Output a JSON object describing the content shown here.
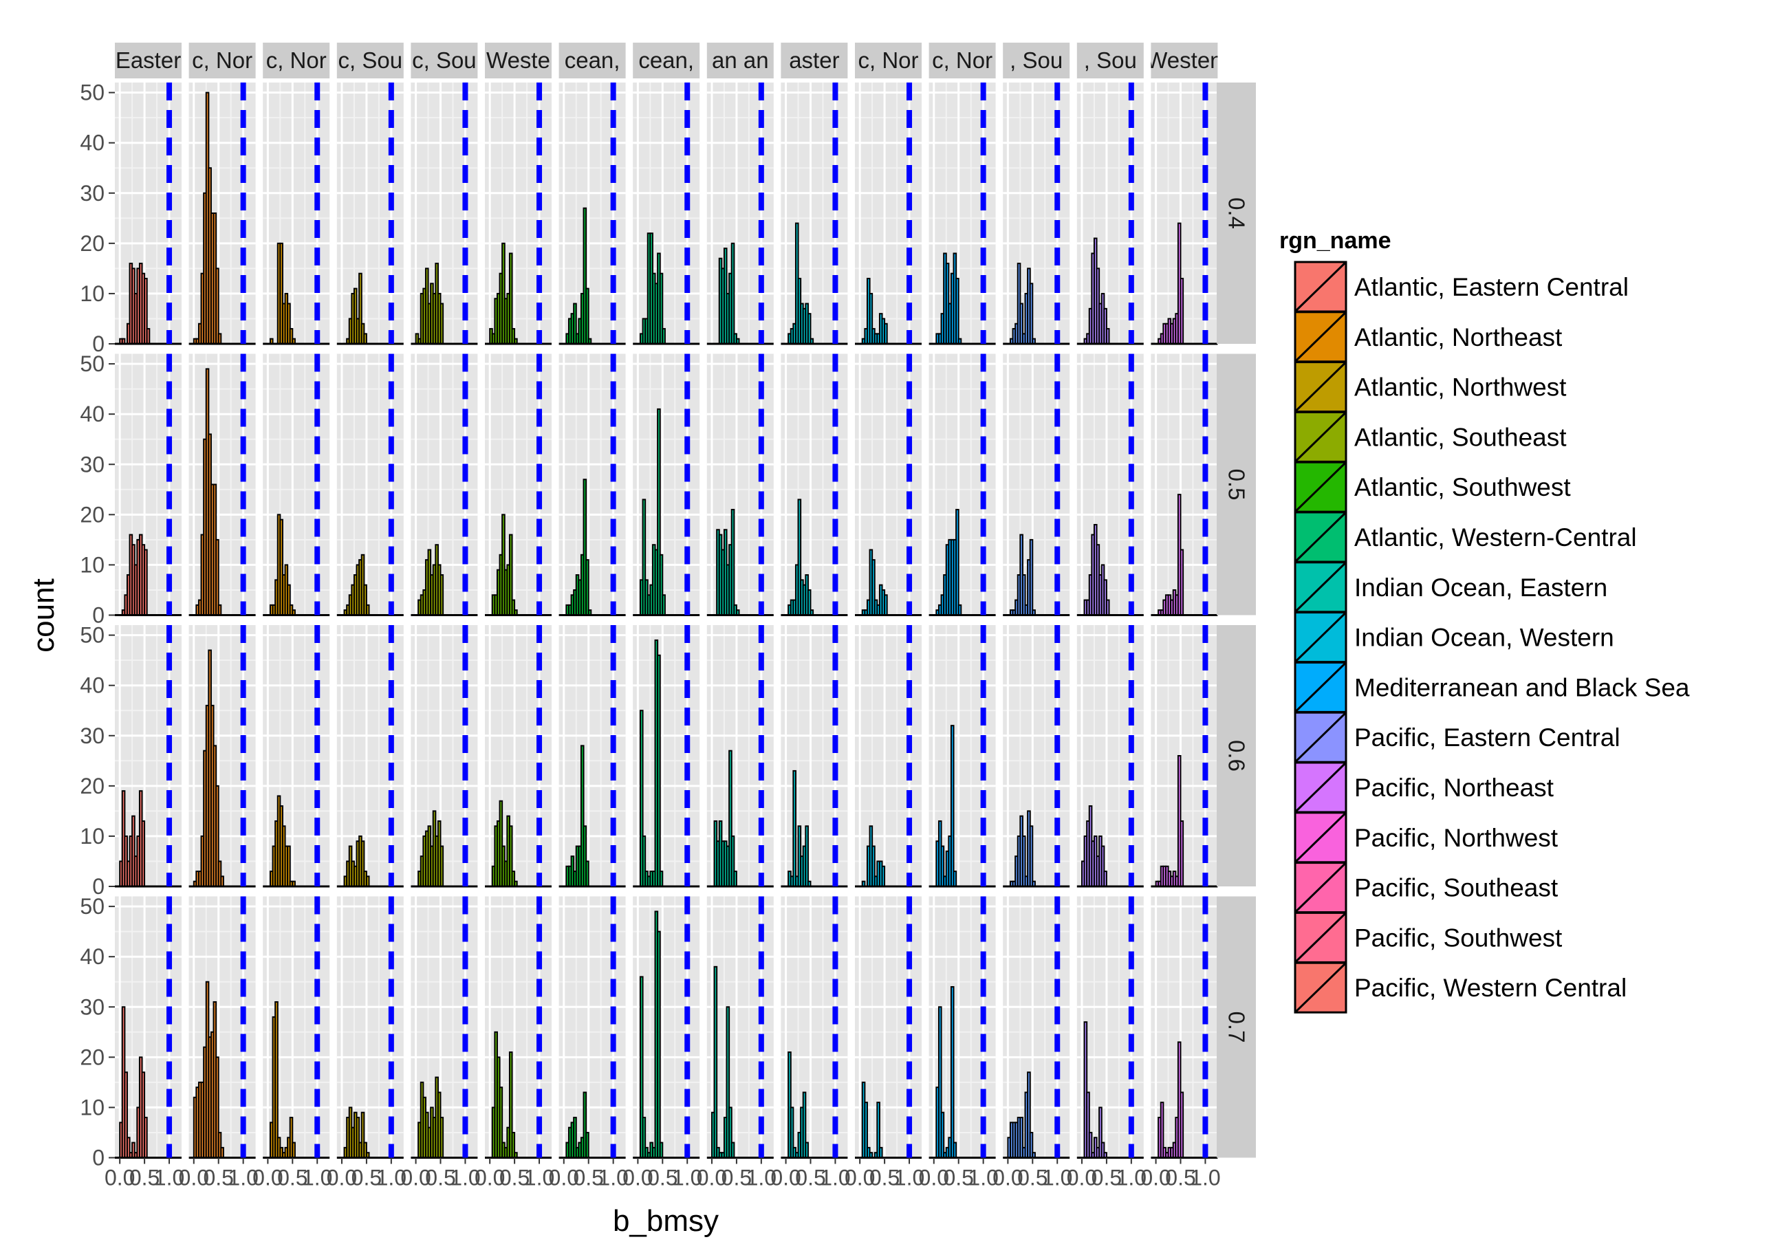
{
  "chart_data": {
    "type": "bar",
    "subtype": "faceted histogram (facet_grid: rows = 0.4/0.5/0.6/0.7, columns = rgn_name)",
    "xlabel": "b_bmsy",
    "ylabel": "count",
    "ylim": [
      0,
      52
    ],
    "xlim": [
      -0.1,
      1.25
    ],
    "yticks": [
      0,
      10,
      20,
      30,
      40,
      50
    ],
    "xticks": [
      0.0,
      0.5,
      1.0
    ],
    "xtick_labels": [
      "0.0",
      "0.5",
      "1.0"
    ],
    "reference_line": {
      "x": 1.0,
      "color": "#0000ff",
      "style": "dashed"
    },
    "bin_width": 0.05,
    "bin_start": 0.0,
    "background": "#e5e5e5",
    "grid": true,
    "legend": {
      "title": "rgn_name",
      "position": "right",
      "entries": [
        {
          "label": "Atlantic, Eastern Central",
          "color": "#F8766D"
        },
        {
          "label": "Atlantic, Northeast",
          "color": "#E18A00"
        },
        {
          "label": "Atlantic, Northwest",
          "color": "#BE9C00"
        },
        {
          "label": "Atlantic, Southeast",
          "color": "#8CAB00"
        },
        {
          "label": "Atlantic, Southwest",
          "color": "#24B700"
        },
        {
          "label": "Atlantic, Western-Central",
          "color": "#00BE70"
        },
        {
          "label": "Indian Ocean, Eastern",
          "color": "#00C1AB"
        },
        {
          "label": "Indian Ocean, Western",
          "color": "#00BBDA"
        },
        {
          "label": "Mediterranean and Black Sea",
          "color": "#00ACFC"
        },
        {
          "label": "Pacific, Eastern Central",
          "color": "#8B93FF"
        },
        {
          "label": "Pacific, Northeast",
          "color": "#D575FE"
        },
        {
          "label": "Pacific, Northwest",
          "color": "#F962DD"
        },
        {
          "label": "Pacific, Southeast",
          "color": "#FF65AC"
        },
        {
          "label": "Pacific, Southwest",
          "color": "#FF6C91"
        },
        {
          "label": "Pacific, Western Central",
          "color": "#F8766D"
        }
      ]
    },
    "column_strips": [
      "Easter",
      "c, Nor",
      "c, Nor",
      "c, Sou",
      "c, Sou",
      "Weste",
      "cean,",
      "cean,",
      "an an",
      "aster",
      "c, Nor",
      "c, Nor",
      ", Sou",
      ", Sou",
      "Westen"
    ],
    "column_colors": [
      "#F8766D",
      "#E88526",
      "#D39200",
      "#B79F00",
      "#93AA00",
      "#5EB300",
      "#00BA38",
      "#00BF74",
      "#00C19F",
      "#00BFC4",
      "#00B9E3",
      "#00ADFA",
      "#619CFF",
      "#AE87FF",
      "#DB72FB"
    ],
    "row_strips": [
      "0.4",
      "0.5",
      "0.6",
      "0.7"
    ],
    "panels": [
      [
        [
          1,
          1,
          0,
          4,
          16,
          15,
          10,
          15,
          16,
          14,
          13,
          3
        ],
        [
          1,
          1,
          4,
          14,
          30,
          50,
          35,
          26,
          26,
          15,
          2,
          0
        ],
        [
          0,
          1,
          0,
          0,
          20,
          20,
          8,
          10,
          8,
          3,
          1,
          0
        ],
        [
          0,
          0,
          1,
          5,
          10,
          11,
          5,
          14,
          4,
          2,
          0,
          0
        ],
        [
          2,
          1,
          10,
          11,
          15,
          8,
          12,
          10,
          16,
          10,
          8,
          0
        ],
        [
          3,
          2,
          9,
          10,
          14,
          20,
          9,
          10,
          18,
          3,
          1,
          0
        ],
        [
          0,
          2,
          5,
          6,
          8,
          2,
          5,
          10,
          27,
          11,
          1,
          0
        ],
        [
          0,
          2,
          5,
          5,
          22,
          22,
          14,
          12,
          18,
          14,
          3,
          0
        ],
        [
          0,
          0,
          0,
          17,
          15,
          19,
          10,
          14,
          20,
          2,
          1,
          0
        ],
        [
          0,
          2,
          3,
          4,
          24,
          13,
          8,
          7,
          8,
          6,
          1,
          0
        ],
        [
          0,
          1,
          3,
          13,
          10,
          3,
          2,
          2,
          6,
          5,
          4,
          0
        ],
        [
          0,
          2,
          2,
          6,
          18,
          16,
          8,
          14,
          18,
          13,
          1,
          0
        ],
        [
          0,
          1,
          3,
          4,
          16,
          8,
          2,
          10,
          15,
          12,
          1,
          0
        ],
        [
          0,
          1,
          2,
          7,
          18,
          21,
          15,
          8,
          10,
          7,
          3,
          0
        ],
        [
          0,
          1,
          2,
          4,
          4,
          5,
          4,
          5,
          6,
          24,
          13,
          0
        ]
      ],
      [
        [
          0,
          1,
          4,
          8,
          16,
          14,
          10,
          15,
          16,
          14,
          13,
          0
        ],
        [
          0,
          2,
          3,
          16,
          35,
          49,
          36,
          26,
          26,
          15,
          2,
          0
        ],
        [
          0,
          2,
          2,
          7,
          20,
          19,
          8,
          10,
          6,
          2,
          1,
          0
        ],
        [
          0,
          1,
          2,
          4,
          6,
          8,
          10,
          11,
          12,
          6,
          2,
          0
        ],
        [
          0,
          3,
          4,
          5,
          11,
          13,
          8,
          10,
          14,
          10,
          8,
          0
        ],
        [
          0,
          4,
          4,
          9,
          12,
          20,
          9,
          10,
          16,
          3,
          1,
          0
        ],
        [
          0,
          2,
          2,
          4,
          5,
          8,
          7,
          12,
          27,
          11,
          1,
          0
        ],
        [
          0,
          7,
          23,
          7,
          4,
          6,
          14,
          13,
          41,
          12,
          4,
          0
        ],
        [
          0,
          0,
          17,
          16,
          13,
          17,
          10,
          14,
          21,
          2,
          1,
          0
        ],
        [
          0,
          2,
          3,
          3,
          10,
          23,
          7,
          6,
          8,
          5,
          1,
          0
        ],
        [
          0,
          1,
          1,
          3,
          13,
          11,
          3,
          2,
          6,
          5,
          4,
          0
        ],
        [
          0,
          1,
          2,
          4,
          8,
          14,
          15,
          15,
          15,
          21,
          2,
          0
        ],
        [
          0,
          1,
          1,
          3,
          8,
          16,
          8,
          2,
          11,
          15,
          1,
          0
        ],
        [
          0,
          3,
          3,
          8,
          16,
          18,
          14,
          8,
          10,
          7,
          3,
          0
        ],
        [
          0,
          1,
          1,
          3,
          4,
          4,
          3,
          5,
          4,
          24,
          13,
          0
        ]
      ],
      [
        [
          5,
          19,
          10,
          5,
          10,
          14,
          6,
          10,
          19,
          13,
          0,
          0
        ],
        [
          1,
          3,
          3,
          10,
          27,
          36,
          47,
          36,
          28,
          20,
          5,
          2
        ],
        [
          0,
          3,
          8,
          13,
          18,
          16,
          12,
          8,
          8,
          1,
          1,
          0
        ],
        [
          0,
          2,
          5,
          8,
          5,
          4,
          9,
          10,
          9,
          3,
          2,
          0
        ],
        [
          0,
          3,
          6,
          10,
          11,
          12,
          8,
          15,
          10,
          13,
          8,
          0
        ],
        [
          0,
          4,
          12,
          13,
          17,
          8,
          5,
          14,
          12,
          3,
          1,
          0
        ],
        [
          0,
          4,
          4,
          6,
          3,
          8,
          8,
          28,
          12,
          5,
          0,
          0
        ],
        [
          0,
          35,
          10,
          3,
          2,
          3,
          3,
          49,
          46,
          3,
          0,
          0
        ],
        [
          0,
          13,
          9,
          13,
          9,
          9,
          8,
          27,
          10,
          3,
          0,
          0
        ],
        [
          0,
          3,
          2,
          23,
          2,
          12,
          6,
          8,
          12,
          1,
          0,
          0
        ],
        [
          0,
          1,
          0,
          8,
          12,
          8,
          2,
          5,
          5,
          4,
          0,
          0
        ],
        [
          0,
          9,
          13,
          8,
          2,
          7,
          10,
          32,
          3,
          0,
          0,
          0
        ],
        [
          0,
          1,
          1,
          6,
          10,
          14,
          10,
          2,
          15,
          12,
          1,
          0
        ],
        [
          5,
          10,
          13,
          16,
          9,
          10,
          6,
          10,
          8,
          3,
          0,
          0
        ],
        [
          1,
          1,
          4,
          4,
          4,
          3,
          2,
          3,
          2,
          26,
          13,
          0
        ]
      ],
      [
        [
          7,
          30,
          17,
          4,
          1,
          3,
          1,
          10,
          20,
          17,
          8,
          0
        ],
        [
          12,
          14,
          15,
          15,
          22,
          35,
          24,
          25,
          31,
          20,
          5,
          2
        ],
        [
          0,
          7,
          28,
          31,
          4,
          2,
          1,
          2,
          4,
          8,
          3,
          0
        ],
        [
          0,
          2,
          8,
          10,
          6,
          9,
          8,
          3,
          9,
          3,
          1,
          0
        ],
        [
          0,
          7,
          15,
          12,
          9,
          6,
          10,
          8,
          16,
          13,
          8,
          0
        ],
        [
          0,
          10,
          25,
          20,
          14,
          3,
          2,
          6,
          21,
          5,
          1,
          0
        ],
        [
          0,
          3,
          6,
          7,
          8,
          2,
          3,
          4,
          13,
          5,
          0,
          0
        ],
        [
          0,
          36,
          8,
          2,
          1,
          3,
          2,
          49,
          45,
          3,
          0,
          0
        ],
        [
          9,
          38,
          2,
          1,
          1,
          8,
          30,
          10,
          3,
          0,
          0,
          0
        ],
        [
          0,
          21,
          10,
          2,
          1,
          5,
          10,
          13,
          3,
          0,
          0,
          0
        ],
        [
          0,
          15,
          11,
          2,
          1,
          0,
          1,
          11,
          2,
          0,
          0,
          0
        ],
        [
          0,
          14,
          30,
          9,
          1,
          2,
          4,
          34,
          3,
          0,
          0,
          0
        ],
        [
          4,
          7,
          7,
          7,
          8,
          8,
          2,
          13,
          17,
          5,
          1,
          0
        ],
        [
          0,
          27,
          13,
          5,
          1,
          4,
          2,
          10,
          3,
          1,
          0,
          0
        ],
        [
          0,
          8,
          11,
          2,
          1,
          2,
          2,
          3,
          8,
          23,
          13,
          0
        ]
      ]
    ]
  }
}
